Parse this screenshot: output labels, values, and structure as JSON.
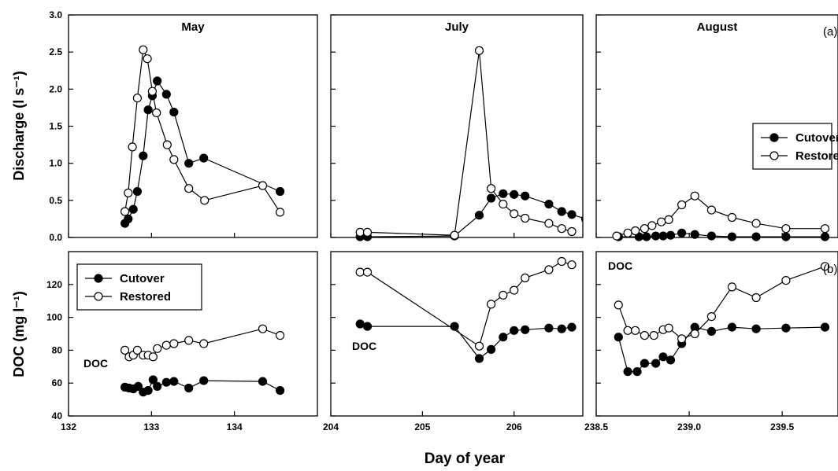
{
  "chart_data": {
    "type": "line",
    "xlabel": "Day of year",
    "panel_rows": [
      {
        "ylabel": "Discharge  (l s⁻¹)",
        "tag": "(a)",
        "ylim": [
          0,
          3.0
        ],
        "yticks": [
          0.0,
          0.5,
          1.0,
          1.5,
          2.0,
          2.5,
          3.0
        ],
        "ytick_labels": [
          "0.0",
          "0.5",
          "1.0",
          "1.5",
          "2.0",
          "2.5",
          "3.0"
        ],
        "legend": {
          "location": "upper-right of August panel",
          "panel": 2
        }
      },
      {
        "ylabel": "DOC  (mg l⁻¹)",
        "tag": "(b)",
        "ylim": [
          40,
          140
        ],
        "yticks": [
          40,
          60,
          80,
          100,
          120
        ],
        "ytick_labels": [
          "40",
          "60",
          "80",
          "100",
          "120"
        ],
        "annotation": "DOC",
        "legend": {
          "location": "upper-left of May panel",
          "panel": 0
        }
      }
    ],
    "panels": [
      {
        "title": "May",
        "xlim": [
          132,
          135.0
        ],
        "xticks": [
          132,
          133,
          134
        ],
        "xtick_labels": [
          "132",
          "133",
          "134"
        ],
        "discharge": {
          "cutover": {
            "x": [
              132.68,
              132.72,
              132.78,
              132.83,
              132.9,
              132.96,
              133.01,
              133.07,
              133.18,
              133.27,
              133.45,
              133.63,
              134.55
            ],
            "y": [
              0.19,
              0.25,
              0.38,
              0.62,
              1.1,
              1.72,
              1.91,
              2.11,
              1.93,
              1.69,
              1.0,
              1.07,
              0.62
            ]
          },
          "restored": {
            "x": [
              132.68,
              132.72,
              132.77,
              132.83,
              132.9,
              132.95,
              133.01,
              133.06,
              133.19,
              133.27,
              133.45,
              133.64,
              134.34,
              134.55
            ],
            "y": [
              0.35,
              0.6,
              1.22,
              1.88,
              2.53,
              2.41,
              1.97,
              1.68,
              1.25,
              1.05,
              0.66,
              0.5,
              0.7,
              0.34
            ]
          }
        },
        "doc": {
          "cutover": {
            "x": [
              132.68,
              132.73,
              132.78,
              132.84,
              132.9,
              132.96,
              133.02,
              133.07,
              133.18,
              133.27,
              133.45,
              133.63,
              134.34,
              134.55
            ],
            "y": [
              57.5,
              57,
              56.5,
              58,
              54.5,
              55.5,
              62,
              58,
              60.5,
              61,
              57,
              61.5,
              61,
              55.5
            ]
          },
          "restored": {
            "x": [
              132.68,
              132.73,
              132.78,
              132.83,
              132.9,
              132.96,
              133.02,
              133.07,
              133.18,
              133.27,
              133.45,
              133.63,
              134.34,
              134.55
            ],
            "y": [
              80,
              76,
              77,
              80,
              77,
              77,
              76,
              81,
              83,
              84,
              86,
              84,
              93,
              89
            ]
          }
        }
      },
      {
        "title": "July",
        "xlim": [
          204,
          206.75
        ],
        "xticks": [
          204,
          205,
          206
        ],
        "xtick_labels": [
          "204",
          "205",
          "206"
        ],
        "discharge": {
          "cutover": {
            "x": [
              204.32,
              204.4,
              205.35,
              205.62,
              205.75,
              205.88,
              206.0,
              206.12,
              206.38,
              206.52,
              206.63,
              206.78
            ],
            "y": [
              0.01,
              0.01,
              0.02,
              0.3,
              0.53,
              0.59,
              0.58,
              0.56,
              0.45,
              0.35,
              0.31,
              0.25
            ]
          },
          "restored": {
            "x": [
              204.32,
              204.4,
              205.35,
              205.62,
              205.75,
              205.88,
              206.0,
              206.12,
              206.38,
              206.52,
              206.63
            ],
            "y": [
              0.07,
              0.07,
              0.03,
              2.52,
              0.66,
              0.45,
              0.32,
              0.26,
              0.19,
              0.12,
              0.08
            ]
          }
        },
        "doc": {
          "cutover": {
            "x": [
              204.32,
              204.4,
              205.35,
              205.62,
              205.75,
              205.88,
              206.0,
              206.12,
              206.38,
              206.52,
              206.63
            ],
            "y": [
              96,
              94.5,
              94.5,
              75,
              80.5,
              88,
              92,
              92.5,
              93.5,
              93,
              94
            ]
          },
          "restored": {
            "x": [
              204.32,
              204.4,
              205.62,
              205.75,
              205.88,
              206.0,
              206.12,
              206.38,
              206.52,
              206.63
            ],
            "y": [
              127.5,
              127.5,
              82.5,
              108,
              113.5,
              116.5,
              124,
              129,
              134,
              132
            ]
          }
        }
      },
      {
        "title": "August",
        "xlim": [
          238.5,
          239.8
        ],
        "xticks": [
          238.5,
          239.0,
          239.5
        ],
        "xtick_labels": [
          "238.5",
          "239.0",
          "239.5"
        ],
        "discharge": {
          "cutover": {
            "x": [
              238.62,
              238.73,
              238.77,
              238.82,
              238.86,
              238.9,
              238.96,
              239.03,
              239.12,
              239.23,
              239.36,
              239.52,
              239.73
            ],
            "y": [
              0.01,
              0.01,
              0.01,
              0.02,
              0.02,
              0.03,
              0.06,
              0.04,
              0.02,
              0.01,
              0.01,
              0.01,
              0.01
            ]
          },
          "restored": {
            "x": [
              238.61,
              238.67,
              238.71,
              238.76,
              238.8,
              238.85,
              238.89,
              238.96,
              239.03,
              239.12,
              239.23,
              239.36,
              239.52,
              239.73
            ],
            "y": [
              0.02,
              0.06,
              0.09,
              0.12,
              0.16,
              0.21,
              0.24,
              0.44,
              0.56,
              0.37,
              0.27,
              0.19,
              0.12,
              0.12
            ]
          }
        },
        "doc": {
          "cutover": {
            "x": [
              238.62,
              238.67,
              238.72,
              238.76,
              238.82,
              238.86,
              238.9,
              238.96,
              239.03,
              239.12,
              239.23,
              239.36,
              239.52,
              239.73
            ],
            "y": [
              88,
              67,
              67,
              72,
              72,
              76,
              74,
              84,
              94,
              91.5,
              94,
              93,
              93.5,
              94
            ]
          },
          "restored": {
            "x": [
              238.62,
              238.67,
              238.71,
              238.76,
              238.81,
              238.86,
              238.89,
              238.96,
              239.03,
              239.12,
              239.23,
              239.36,
              239.52,
              239.73
            ],
            "y": [
              107.5,
              92,
              92,
              89,
              89,
              92.5,
              93.5,
              87,
              90,
              100.5,
              118.5,
              112,
              122.5,
              131
            ]
          }
        }
      }
    ],
    "series": [
      {
        "name": "Cutover",
        "marker": "filled-circle",
        "color": "#000000"
      },
      {
        "name": "Restored",
        "marker": "open-circle",
        "color": "#000000"
      }
    ]
  }
}
